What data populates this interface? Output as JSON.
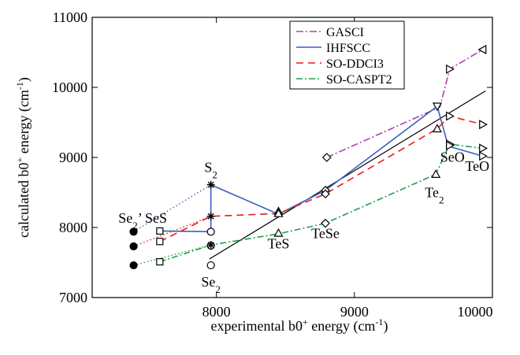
{
  "chart_data": {
    "type": "line",
    "title": "",
    "xlabel": "experimental b0",
    "xlabel_sup": "+",
    "xlabel_unit_pre": " energy (cm",
    "xlabel_unit_sup": "-1",
    "xlabel_unit_post": ")",
    "ylabel": "calculated b0",
    "ylabel_sup": "+",
    "ylabel_unit_pre": " energy (cm",
    "ylabel_unit_sup": "-1",
    "ylabel_unit_post": ")",
    "xlim": [
      7100,
      10000
    ],
    "ylim": [
      7000,
      11000
    ],
    "xticks": [
      {
        "v": 8000,
        "label": "8000"
      },
      {
        "v": 9000,
        "label": "9000"
      },
      {
        "v": 10000,
        "label": "10000"
      }
    ],
    "yticks": [
      {
        "v": 7000,
        "label": "7000"
      },
      {
        "v": 8000,
        "label": "8000"
      },
      {
        "v": 9000,
        "label": "9000"
      },
      {
        "v": 10000,
        "label": "10000"
      },
      {
        "v": 11000,
        "label": "11000"
      }
    ],
    "grid": false,
    "legend_position": "top-right",
    "reference_line": {
      "x": [
        7950,
        9950
      ],
      "y": [
        7550,
        9950
      ],
      "color": "#000000"
    },
    "series": [
      {
        "name": "GASCI",
        "color": "#b040b0",
        "dash": "9,3,2,3",
        "marker": "ltriangle",
        "x": [
          8800,
          9620,
          9690,
          9930
        ],
        "y": [
          9000,
          9720,
          10260,
          10540
        ]
      },
      {
        "name": "IHFSCC",
        "color": "#3a5fbf",
        "dash": "",
        "marker": "none",
        "x": [
          7590,
          7960,
          7960,
          8450,
          8790,
          9600,
          9680,
          9930
        ],
        "y": [
          7950,
          7940,
          8610,
          8190,
          8530,
          9730,
          9160,
          9020
        ]
      },
      {
        "name": "SO-DDCI3",
        "color": "#e02020",
        "dash": "9,6",
        "marker": "rtriangle",
        "x": [
          7590,
          7960,
          8450,
          8790,
          9600,
          9690,
          9930
        ],
        "y": [
          7800,
          8160,
          8200,
          8480,
          9410,
          9590,
          9470
        ]
      },
      {
        "name": "SO-CASPT2",
        "color": "#20a050",
        "dash": "8,3,2,3",
        "marker": "rtriangle",
        "x": [
          7590,
          7960,
          8450,
          8790,
          9590,
          9690,
          9930
        ],
        "y": [
          7510,
          7750,
          7910,
          8060,
          8760,
          9190,
          9130
        ]
      }
    ],
    "dotted_links": [
      {
        "color": "#3a5fbf",
        "x": [
          7400,
          7960
        ],
        "y": [
          7940,
          8610
        ]
      },
      {
        "color": "#e02020",
        "x": [
          7400,
          7960
        ],
        "y": [
          7730,
          8160
        ]
      },
      {
        "color": "#20a050",
        "x": [
          7400,
          7960
        ],
        "y": [
          7460,
          7750
        ]
      }
    ],
    "markers": [
      {
        "shape": "dot",
        "x": 7400,
        "y": 7940
      },
      {
        "shape": "dot",
        "x": 7400,
        "y": 7730
      },
      {
        "shape": "dot",
        "x": 7400,
        "y": 7460
      },
      {
        "shape": "square",
        "x": 7590,
        "y": 7950
      },
      {
        "shape": "square",
        "x": 7590,
        "y": 7800
      },
      {
        "shape": "square",
        "x": 7590,
        "y": 7510
      },
      {
        "shape": "circle",
        "x": 7960,
        "y": 7940
      },
      {
        "shape": "circle",
        "x": 7960,
        "y": 7740
      },
      {
        "shape": "circle",
        "x": 7960,
        "y": 7460
      },
      {
        "shape": "star",
        "x": 7960,
        "y": 8610
      },
      {
        "shape": "star",
        "x": 7960,
        "y": 8160
      },
      {
        "shape": "star",
        "x": 7960,
        "y": 7750
      },
      {
        "shape": "uptriangle",
        "x": 8450,
        "y": 8230
      },
      {
        "shape": "uptriangle",
        "x": 8450,
        "y": 8200
      },
      {
        "shape": "uptriangle",
        "x": 8450,
        "y": 7920
      },
      {
        "shape": "diamond",
        "x": 8790,
        "y": 8530
      },
      {
        "shape": "diamond",
        "x": 8790,
        "y": 8480
      },
      {
        "shape": "diamond",
        "x": 8790,
        "y": 8060
      },
      {
        "shape": "diamond",
        "x": 8800,
        "y": 9000
      },
      {
        "shape": "downtriangle",
        "x": 9600,
        "y": 9730
      },
      {
        "shape": "uptriangle",
        "x": 9600,
        "y": 9410
      },
      {
        "shape": "uptriangle",
        "x": 9590,
        "y": 8760
      },
      {
        "shape": "rtriangle",
        "x": 9690,
        "y": 10260
      },
      {
        "shape": "rtriangle",
        "x": 9690,
        "y": 9590
      },
      {
        "shape": "rtriangle",
        "x": 9690,
        "y": 9190
      },
      {
        "shape": "rtriangle",
        "x": 9690,
        "y": 9170
      },
      {
        "shape": "ltriangle",
        "x": 9930,
        "y": 10540
      },
      {
        "shape": "rtriangle",
        "x": 9930,
        "y": 9470
      },
      {
        "shape": "rtriangle",
        "x": 9930,
        "y": 9130
      },
      {
        "shape": "rtriangle",
        "x": 9930,
        "y": 9020
      }
    ],
    "annotations": [
      {
        "base": "S",
        "sub": "2",
        "post": "",
        "x": 7960,
        "y": 8790,
        "anchor": "middle"
      },
      {
        "base": "Se",
        "sub": "2",
        "post": "’ SeS",
        "x": 7290,
        "y": 8070,
        "anchor": "start"
      },
      {
        "base": "Se",
        "sub": "2",
        "post": "",
        "x": 7960,
        "y": 7160,
        "anchor": "middle"
      },
      {
        "base": "TeS",
        "sub": "",
        "post": "",
        "x": 8450,
        "y": 7700,
        "anchor": "middle"
      },
      {
        "base": "TeSe",
        "sub": "",
        "post": "",
        "x": 8790,
        "y": 7850,
        "anchor": "middle"
      },
      {
        "base": "Te",
        "sub": "2",
        "post": "",
        "x": 9580,
        "y": 8430,
        "anchor": "middle"
      },
      {
        "base": "SeO",
        "sub": "",
        "post": "",
        "x": 9710,
        "y": 8940,
        "anchor": "middle"
      },
      {
        "base": "TeO",
        "sub": "",
        "post": "",
        "x": 9890,
        "y": 8810,
        "anchor": "middle"
      }
    ]
  }
}
